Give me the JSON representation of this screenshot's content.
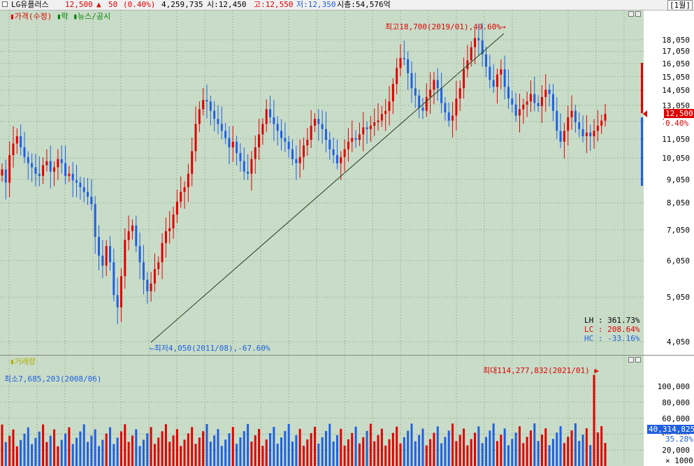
{
  "topbar": {
    "name": "LG유플러스",
    "price": "12,500",
    "change_arrow": "▲",
    "change": "50",
    "change_pct": "(0.40%)",
    "volume": "4,259,735",
    "open": "시:12,450",
    "high": "고:12,550",
    "low": "저:12,350",
    "mcap": "시총:54,576억",
    "period": "[1월]"
  },
  "price_pane": {
    "legend_items": [
      "가격(수정)",
      "락",
      "뉴스/공시"
    ],
    "high_label": "최고18,700(2019/01),49.60%→",
    "low_label": "⌙최저4,050(2011/08),-67.60%",
    "stats": {
      "lh": "LH  : 361.73%",
      "lc": "LC  : 208.64%",
      "hc": "HC  : -33.16%"
    },
    "current_price_box": "12,500",
    "current_pct_box": "0.40%",
    "ticks": [
      "18,050",
      "17,050",
      "16,050",
      "15,050",
      "14,050",
      "13,050",
      "12,050",
      "11,050",
      "10,050",
      "9,050",
      "8,050",
      "7,050",
      "6,050",
      "5,050",
      "4,050"
    ],
    "tick_values": [
      18050,
      17050,
      16050,
      15050,
      14050,
      13050,
      12050,
      11050,
      10050,
      9050,
      8050,
      7050,
      6050,
      5050,
      4050
    ]
  },
  "volume_pane": {
    "legend": "거래량",
    "max_label": "최대114,277,832(2021/01) ▶",
    "min_label": "최소7,685,203(2008/06)",
    "current_volume_box": "40,314,825",
    "current_pct_box": "35.28%",
    "ticks": [
      "100,000",
      "80,000",
      "60,000",
      "40,000",
      "20,000"
    ],
    "unit": "× 1000"
  },
  "colors": {
    "up": "#e00000",
    "down": "#2060e0",
    "background": "#c8dcc8",
    "grid": "#7a9a7a"
  },
  "chart_data": {
    "type": "candlestick",
    "period": "monthly",
    "close": [
      9500,
      8900,
      10200,
      10800,
      11200,
      10600,
      10100,
      9800,
      9600,
      9300,
      9200,
      9700,
      9900,
      9400,
      9600,
      10000,
      9800,
      9200,
      9300,
      9000,
      8900,
      8700,
      8500,
      8300,
      8000,
      6800,
      6200,
      5900,
      6500,
      6000,
      5100,
      4800,
      5600,
      6700,
      7000,
      7200,
      6500,
      6000,
      5500,
      5200,
      5400,
      5800,
      6000,
      6600,
      7000,
      7100,
      7600,
      8100,
      8500,
      8700,
      9300,
      10400,
      11900,
      12800,
      13400,
      13300,
      12700,
      12200,
      11900,
      11500,
      11100,
      10600,
      10900,
      10300,
      9900,
      9400,
      9300,
      10000,
      10600,
      11300,
      11900,
      12800,
      12300,
      11900,
      11500,
      11100,
      10900,
      10500,
      10000,
      9800,
      10100,
      10700,
      11000,
      11800,
      12200,
      11900,
      11600,
      11000,
      10500,
      10200,
      9800,
      10100,
      10500,
      10900,
      11100,
      11000,
      11300,
      11700,
      11600,
      11800,
      12000,
      12100,
      12500,
      12700,
      13300,
      14500,
      15700,
      16500,
      16400,
      15300,
      14200,
      13700,
      12900,
      12700,
      13600,
      14100,
      14800,
      14200,
      13200,
      12600,
      12100,
      12400,
      13500,
      14200,
      15600,
      16300,
      17400,
      18200,
      18000,
      16800,
      15800,
      14800,
      14300,
      15200,
      15600,
      14300,
      13500,
      13100,
      12400,
      12800,
      13100,
      13300,
      13800,
      13200,
      13000,
      13600,
      14100,
      13800,
      12700,
      11500,
      10900,
      11500,
      12300,
      12700,
      12000,
      11600,
      11200,
      11400,
      11200,
      11500,
      11800,
      12100,
      12500
    ]
  }
}
